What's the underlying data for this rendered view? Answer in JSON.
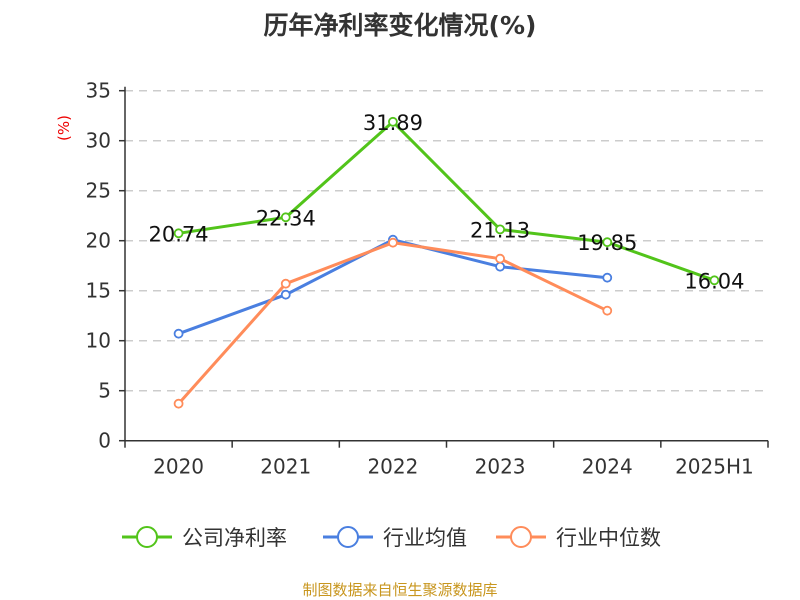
{
  "chart_data": {
    "type": "line",
    "title": "历年净利率变化情况(%)",
    "ylabel": "(%)",
    "categories": [
      "2020",
      "2021",
      "2022",
      "2023",
      "2024",
      "2025H1"
    ],
    "ylim": [
      0,
      35
    ],
    "yticks": [
      0,
      5,
      10,
      15,
      20,
      25,
      30,
      35
    ],
    "grid": true,
    "legend_position": "bottom",
    "series": [
      {
        "name": "公司净利率",
        "color": "#52c41a",
        "values": [
          20.74,
          22.34,
          31.89,
          21.13,
          19.85,
          16.04
        ],
        "labels": [
          "20.74",
          "22.34",
          "31.89",
          "21.13",
          "19.85",
          "16.04"
        ]
      },
      {
        "name": "行业均值",
        "color": "#4a7fe0",
        "values": [
          10.7,
          14.6,
          20.1,
          17.4,
          16.3,
          null
        ]
      },
      {
        "name": "行业中位数",
        "color": "#ff8c5a",
        "values": [
          3.7,
          15.7,
          19.8,
          18.2,
          13.0,
          null
        ]
      }
    ]
  },
  "source": "制图数据来自恒生聚源数据库"
}
